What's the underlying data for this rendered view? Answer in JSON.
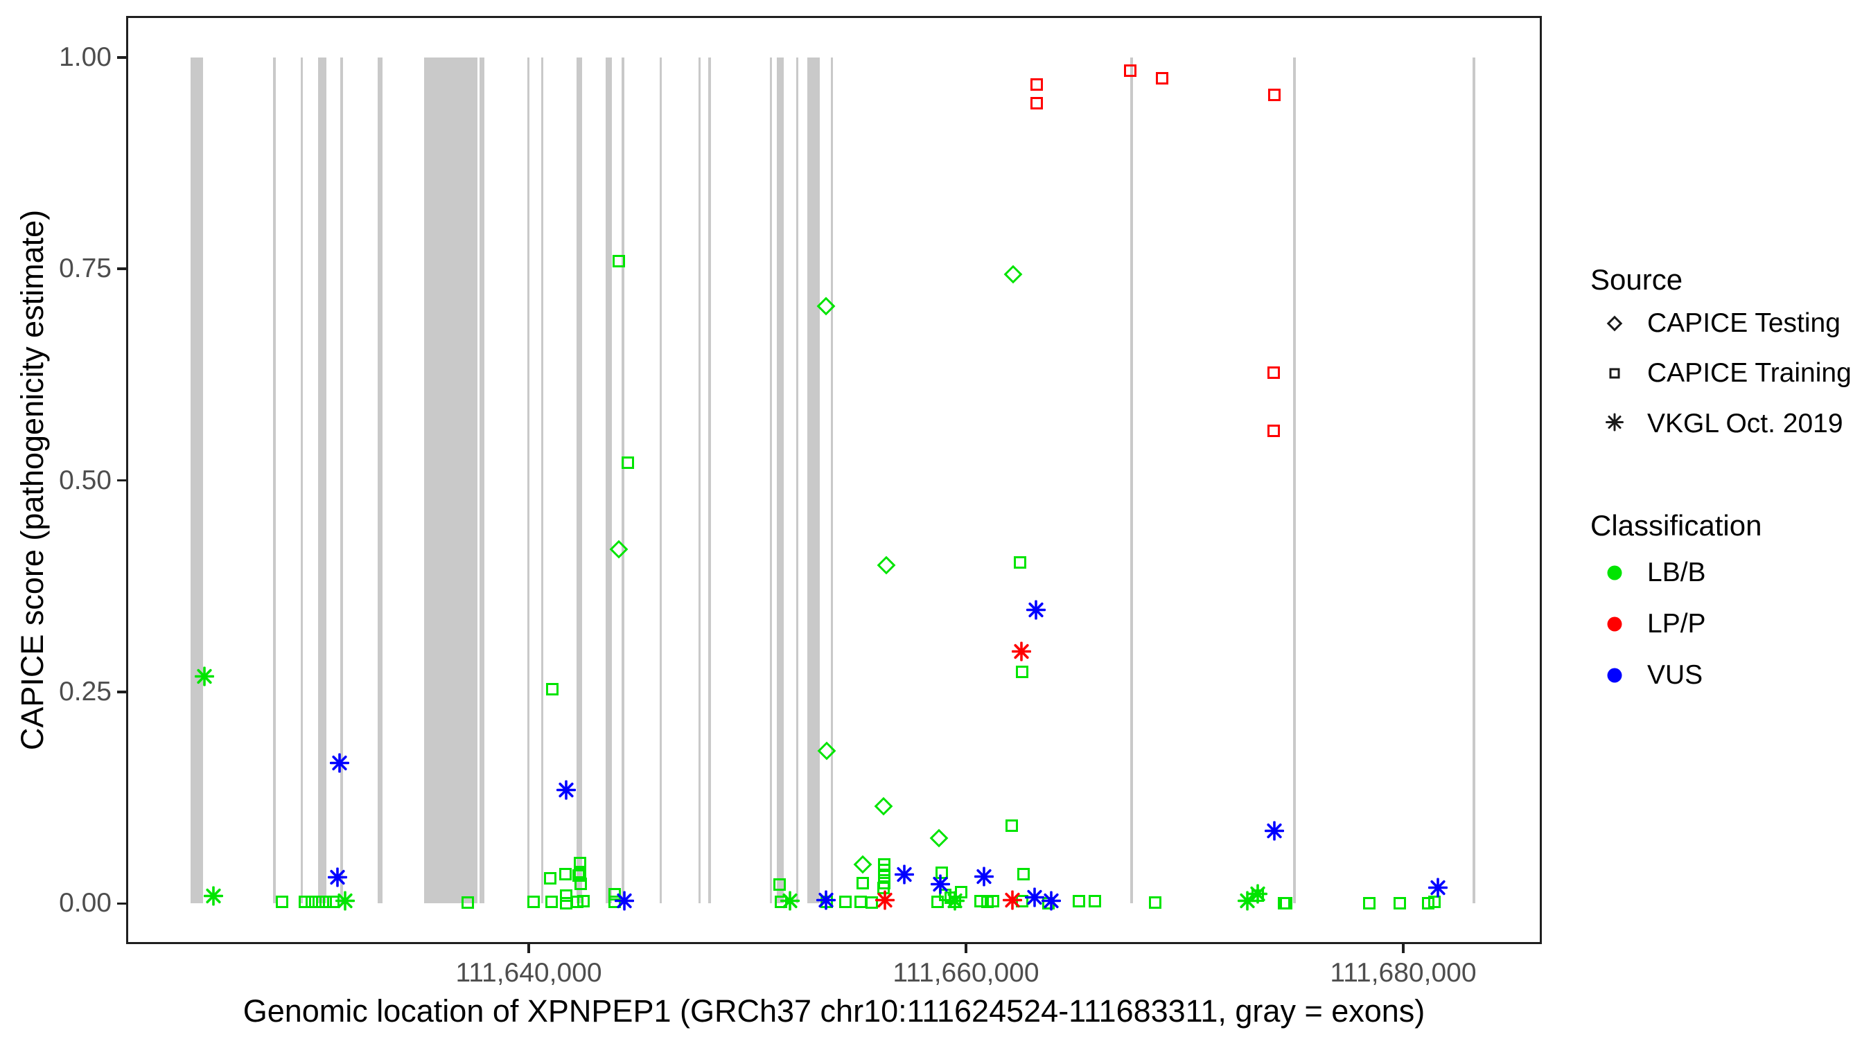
{
  "chart_data": {
    "type": "scatter",
    "xlabel": "Genomic location of XPNPEP1 (GRCh37 chr10:111624524-111683311, gray = exons)",
    "ylabel": "CAPICE score (pathogenicity estimate)",
    "xlim": [
      111621585,
      111686340
    ],
    "ylim": [
      -0.048,
      1.049
    ],
    "grid": "off",
    "x_ticks": [
      {
        "value": 111640000,
        "label": "111,640,000"
      },
      {
        "value": 111660000,
        "label": "111,660,000"
      },
      {
        "value": 111680000,
        "label": "111,680,000"
      }
    ],
    "y_ticks": [
      {
        "value": 0.0,
        "label": "0.00"
      },
      {
        "value": 0.25,
        "label": "0.25"
      },
      {
        "value": 0.5,
        "label": "0.50"
      },
      {
        "value": 0.75,
        "label": "0.75"
      },
      {
        "value": 1.0,
        "label": "1.00"
      }
    ],
    "colors": {
      "lbb": "#00e400",
      "lpp": "#ff0000",
      "vus": "#0000ff",
      "exon": "#c9c9c9"
    },
    "exons": [
      [
        111624524,
        111625090
      ],
      [
        111628305,
        111628400
      ],
      [
        111629570,
        111629670
      ],
      [
        111630365,
        111630745
      ],
      [
        111631380,
        111631475
      ],
      [
        111633090,
        111633310
      ],
      [
        111635215,
        111637655
      ],
      [
        111637750,
        111637970
      ],
      [
        111639935,
        111640030
      ],
      [
        111640570,
        111640665
      ],
      [
        111642185,
        111642440
      ],
      [
        111643520,
        111643800
      ],
      [
        111644250,
        111644345
      ],
      [
        111645990,
        111646085
      ],
      [
        111647765,
        111647860
      ],
      [
        111648210,
        111648305
      ],
      [
        111651030,
        111651125
      ],
      [
        111651345,
        111651660
      ],
      [
        111652230,
        111652325
      ],
      [
        111652735,
        111653305
      ],
      [
        111653815,
        111653910
      ],
      [
        111667510,
        111667640
      ],
      [
        111674960,
        111675090
      ],
      [
        111683180,
        111683311
      ]
    ],
    "series": [
      {
        "name": "CAPICE Training LB/B",
        "source": "CAPICE Training",
        "classification": "LB/B",
        "marker": "square",
        "color": "#00e400",
        "points": [
          [
            111628720,
            0.002
          ],
          [
            111629760,
            0.002
          ],
          [
            111630080,
            0.002
          ],
          [
            111630400,
            0.002
          ],
          [
            111630710,
            0.002
          ],
          [
            111631060,
            0.002
          ],
          [
            111637210,
            0.001
          ],
          [
            111640220,
            0.002
          ],
          [
            111640980,
            0.03
          ],
          [
            111641050,
            0.002
          ],
          [
            111641080,
            0.253
          ],
          [
            111641680,
            0.035
          ],
          [
            111641710,
            0.009
          ],
          [
            111641710,
            0.0
          ],
          [
            111642220,
            0.002
          ],
          [
            111642350,
            0.048
          ],
          [
            111642350,
            0.037
          ],
          [
            111642290,
            0.033
          ],
          [
            111642380,
            0.023
          ],
          [
            111642510,
            0.003
          ],
          [
            111643930,
            0.011
          ],
          [
            111643930,
            0.002
          ],
          [
            111644120,
            0.759
          ],
          [
            111644530,
            0.521
          ],
          [
            111651480,
            0.022
          ],
          [
            111651540,
            0.002
          ],
          [
            111653630,
            0.002
          ],
          [
            111654490,
            0.002
          ],
          [
            111655180,
            0.002
          ],
          [
            111655690,
            0.001
          ],
          [
            111655280,
            0.024
          ],
          [
            111656260,
            0.046
          ],
          [
            111656260,
            0.04
          ],
          [
            111656260,
            0.032
          ],
          [
            111656260,
            0.024
          ],
          [
            111656230,
            0.018
          ],
          [
            111658700,
            0.002
          ],
          [
            111658890,
            0.036
          ],
          [
            111659050,
            0.01
          ],
          [
            111659300,
            0.007
          ],
          [
            111659490,
            0.002
          ],
          [
            111659780,
            0.013
          ],
          [
            111660670,
            0.003
          ],
          [
            111660980,
            0.002
          ],
          [
            111661240,
            0.003
          ],
          [
            111662090,
            0.092
          ],
          [
            111662480,
            0.403
          ],
          [
            111662570,
            0.274
          ],
          [
            111662630,
            0.035
          ],
          [
            111662570,
            0.003
          ],
          [
            111663770,
            0.0
          ],
          [
            111665170,
            0.003
          ],
          [
            111665900,
            0.003
          ],
          [
            111668660,
            0.001
          ],
          [
            111673350,
            0.009
          ],
          [
            111674550,
            0.0
          ],
          [
            111674650,
            0.0
          ],
          [
            111678450,
            0.0
          ],
          [
            111679840,
            0.0
          ],
          [
            111681140,
            0.0
          ],
          [
            111681430,
            0.002
          ]
        ]
      },
      {
        "name": "CAPICE Testing LB/B",
        "source": "CAPICE Testing",
        "classification": "LB/B",
        "marker": "diamond",
        "color": "#00e400",
        "points": [
          [
            111644120,
            0.419
          ],
          [
            111653600,
            0.706
          ],
          [
            111653630,
            0.18
          ],
          [
            111655280,
            0.046
          ],
          [
            111656230,
            0.115
          ],
          [
            111656360,
            0.4
          ],
          [
            111658770,
            0.077
          ],
          [
            111662160,
            0.744
          ]
        ]
      },
      {
        "name": "VKGL Oct. 2019 LB/B",
        "source": "VKGL Oct. 2019",
        "classification": "LB/B",
        "marker": "asterisk",
        "color": "#00e400",
        "points": [
          [
            111625170,
            0.266
          ],
          [
            111625580,
            0.007
          ],
          [
            111631600,
            0.001
          ],
          [
            111651950,
            0.001
          ],
          [
            111659490,
            0.001
          ],
          [
            111672870,
            0.001
          ],
          [
            111673350,
            0.009
          ]
        ]
      },
      {
        "name": "VKGL Oct. 2019 VUS",
        "source": "VKGL Oct. 2019",
        "classification": "VUS",
        "marker": "asterisk",
        "color": "#0000ff",
        "points": [
          [
            111631350,
            0.164
          ],
          [
            111631250,
            0.029
          ],
          [
            111641710,
            0.132
          ],
          [
            111644380,
            0.001
          ],
          [
            111653600,
            0.002
          ],
          [
            111657180,
            0.032
          ],
          [
            111658830,
            0.021
          ],
          [
            111660830,
            0.03
          ],
          [
            111663140,
            0.005
          ],
          [
            111663900,
            0.001
          ],
          [
            111663200,
            0.345
          ],
          [
            111674110,
            0.084
          ],
          [
            111681590,
            0.017
          ]
        ]
      },
      {
        "name": "CAPICE Training LP/P",
        "source": "CAPICE Training",
        "classification": "LP/P",
        "marker": "square",
        "color": "#ff0000",
        "points": [
          [
            111663240,
            0.968
          ],
          [
            111663240,
            0.946
          ],
          [
            111667510,
            0.984
          ],
          [
            111668970,
            0.975
          ],
          [
            111674110,
            0.956
          ],
          [
            111674080,
            0.627
          ],
          [
            111674080,
            0.559
          ]
        ]
      },
      {
        "name": "VKGL Oct. 2019 LP/P",
        "source": "VKGL Oct. 2019",
        "classification": "LP/P",
        "marker": "asterisk",
        "color": "#ff0000",
        "points": [
          [
            111656290,
            0.002
          ],
          [
            111662130,
            0.002
          ],
          [
            111662540,
            0.296
          ]
        ]
      }
    ],
    "legend": {
      "position": "right",
      "source": {
        "title": "Source",
        "items": [
          {
            "label": "CAPICE Testing",
            "marker": "diamond"
          },
          {
            "label": "CAPICE Training",
            "marker": "square"
          },
          {
            "label": "VKGL Oct. 2019",
            "marker": "asterisk"
          }
        ]
      },
      "classification": {
        "title": "Classification",
        "items": [
          {
            "label": "LB/B",
            "color": "#00e400"
          },
          {
            "label": "LP/P",
            "color": "#ff0000"
          },
          {
            "label": "VUS",
            "color": "#0000ff"
          }
        ]
      }
    }
  }
}
